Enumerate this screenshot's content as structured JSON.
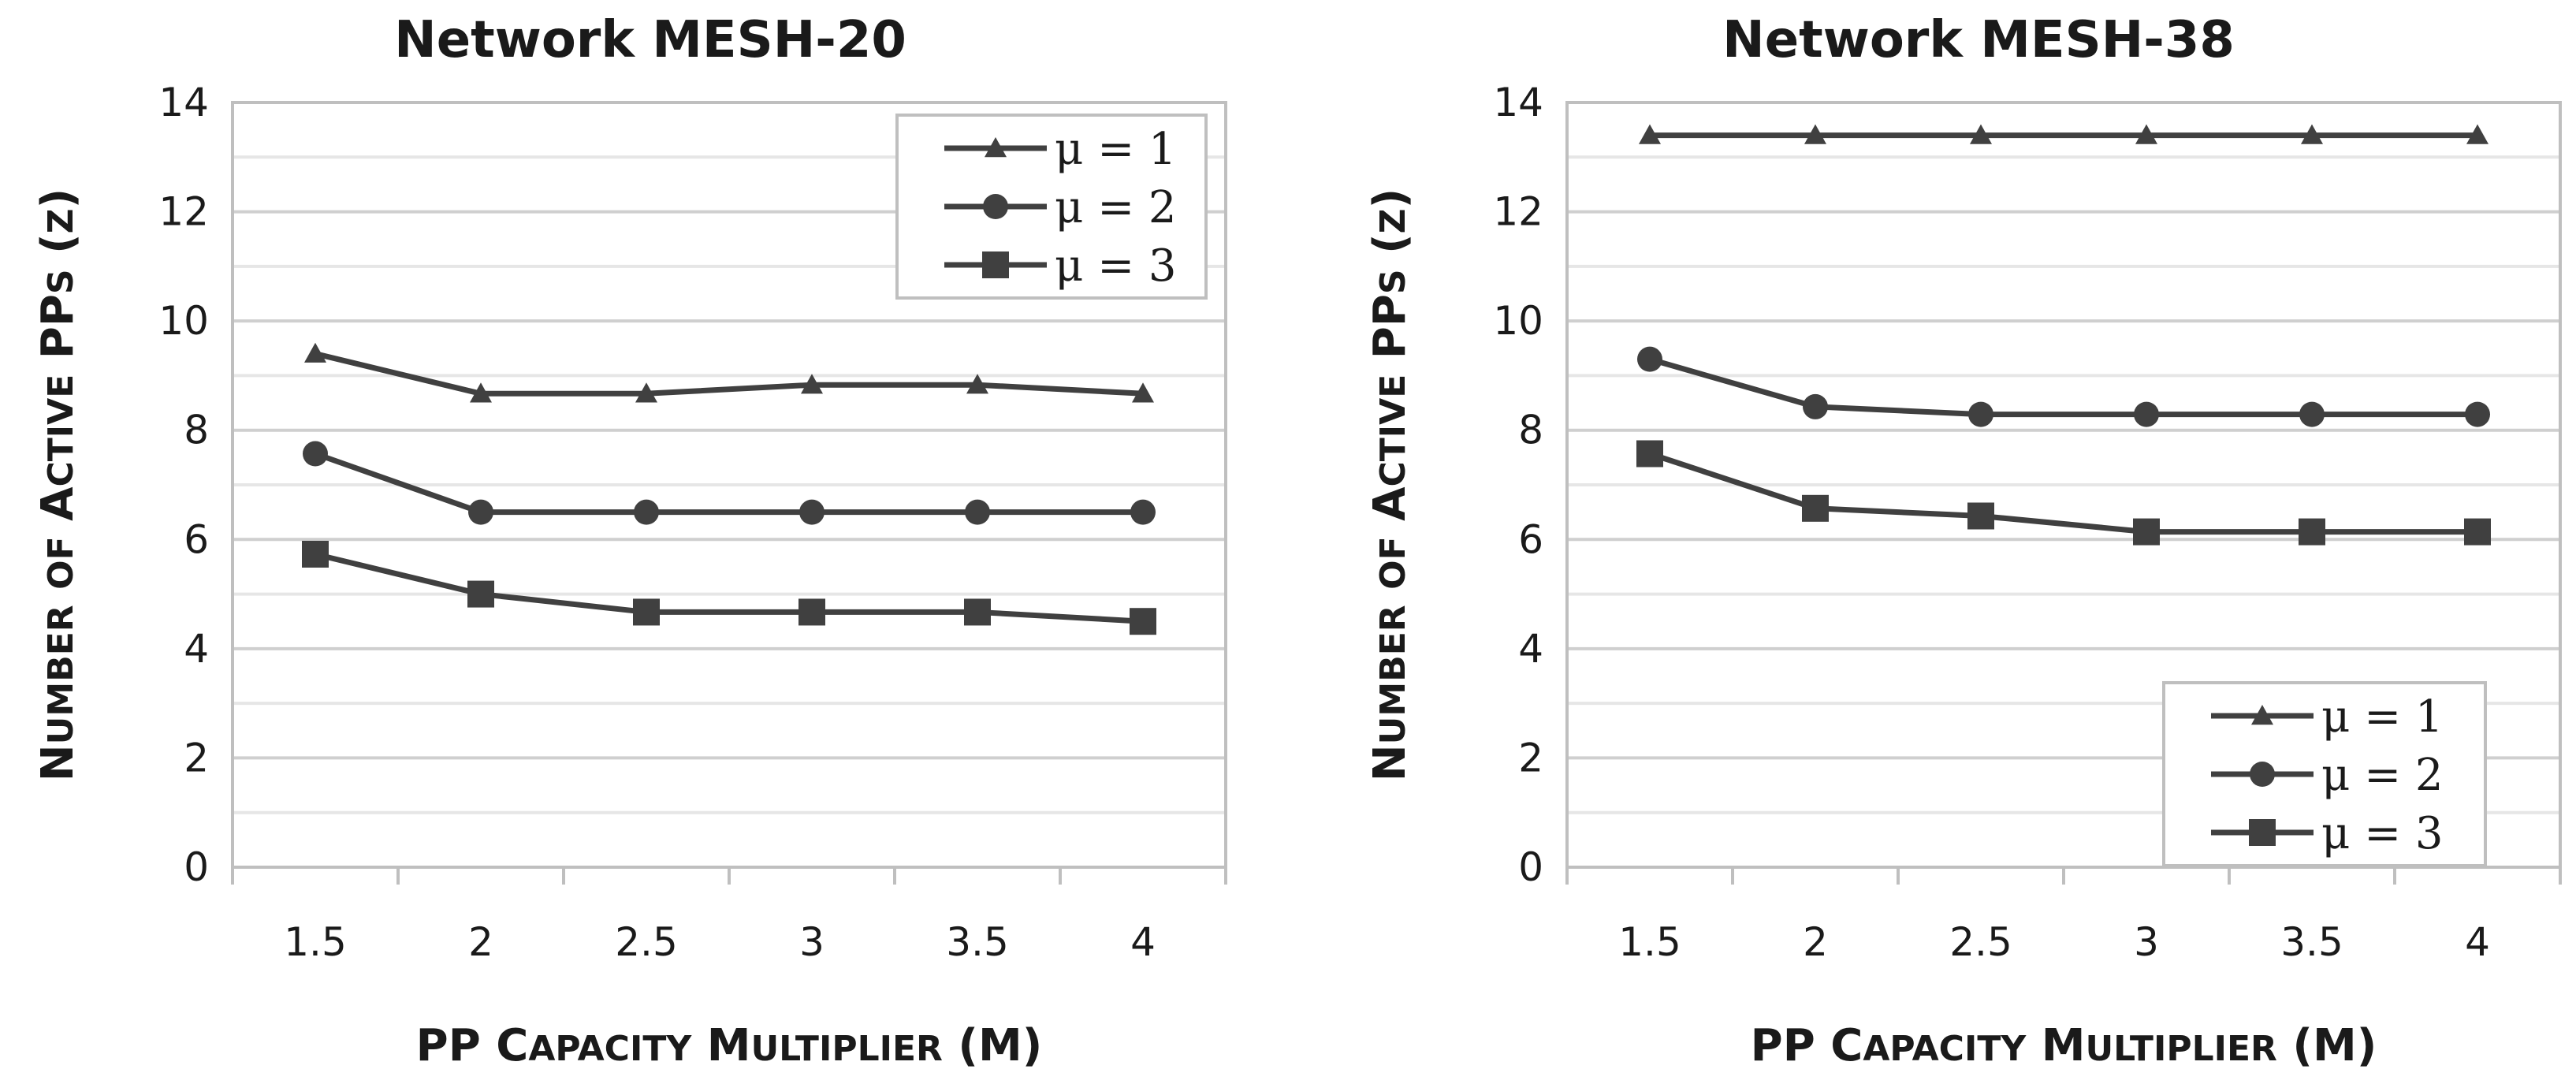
{
  "chart_data": [
    {
      "type": "line",
      "title": "Network MESH-20",
      "xlabel": "PP Capacity Multiplier (M)",
      "ylabel": "Number of Active PPs (z)",
      "categories": [
        "1.5",
        "2",
        "2.5",
        "3",
        "3.5",
        "4"
      ],
      "ylim": [
        0,
        14
      ],
      "yticks": [
        "0",
        "2",
        "4",
        "6",
        "8",
        "10",
        "12",
        "14"
      ],
      "grid": true,
      "legend_position": "top-right",
      "series": [
        {
          "name": "μ = 1",
          "marker": "triangle",
          "values": [
            9.4,
            8.67,
            8.67,
            8.83,
            8.83,
            8.67
          ]
        },
        {
          "name": "μ = 2",
          "marker": "circle",
          "values": [
            7.57,
            6.5,
            6.5,
            6.5,
            6.5,
            6.5
          ]
        },
        {
          "name": "μ = 3",
          "marker": "square",
          "values": [
            5.73,
            5.0,
            4.67,
            4.67,
            4.67,
            4.5
          ]
        }
      ]
    },
    {
      "type": "line",
      "title": "Network MESH-38",
      "xlabel": "PP Capacity Multiplier (M)",
      "ylabel": "Number of Active PPs (z)",
      "categories": [
        "1.5",
        "2",
        "2.5",
        "3",
        "3.5",
        "4"
      ],
      "ylim": [
        0,
        14
      ],
      "yticks": [
        "0",
        "2",
        "4",
        "6",
        "8",
        "10",
        "12",
        "14"
      ],
      "grid": true,
      "legend_position": "bottom-right",
      "series": [
        {
          "name": "μ = 1",
          "marker": "triangle",
          "values": [
            13.4,
            13.4,
            13.4,
            13.4,
            13.4,
            13.4
          ]
        },
        {
          "name": "μ = 2",
          "marker": "circle",
          "values": [
            9.3,
            8.43,
            8.29,
            8.29,
            8.29,
            8.29
          ]
        },
        {
          "name": "μ = 3",
          "marker": "square",
          "values": [
            7.57,
            6.57,
            6.43,
            6.14,
            6.14,
            6.14
          ]
        }
      ]
    }
  ],
  "colors": {
    "series": "#404040",
    "grid": "#d9d9d9",
    "axis": "#bfbfbf",
    "text": "#1a1a1a"
  }
}
